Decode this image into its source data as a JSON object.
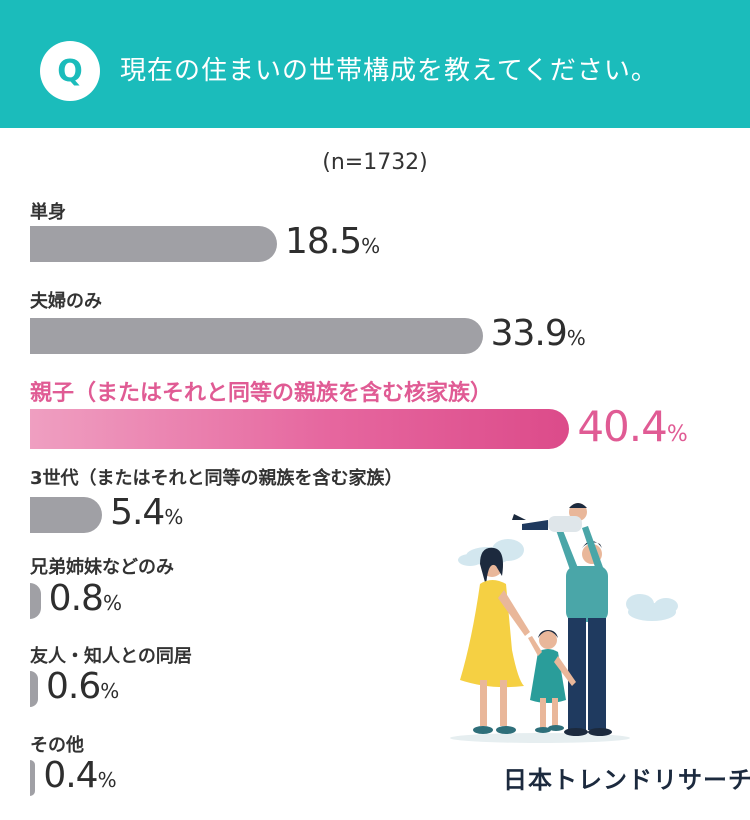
{
  "header": {
    "badge": "Q",
    "question": "現在の住まいの世帯構成を教えてください。"
  },
  "sample_size": "(n=1732)",
  "brand": "日本トレンドリサーチ",
  "colors": {
    "header": "#1bbcbb",
    "bar": "#a0a0a5",
    "highlight": "#e05b94"
  },
  "chart_data": {
    "type": "bar",
    "orientation": "horizontal",
    "categories": [
      "単身",
      "夫婦のみ",
      "親子（またはそれと同等の親族を含む核家族）",
      "3世代（またはそれと同等の親族を含む家族）",
      "兄弟姉妹などのみ",
      "友人・知人との同居",
      "その他"
    ],
    "values": [
      18.5,
      33.9,
      40.4,
      5.4,
      0.8,
      0.6,
      0.4
    ],
    "value_labels": [
      "18.5",
      "33.9",
      "40.4",
      "5.4",
      "0.8",
      "0.6",
      "0.4"
    ],
    "unit": "%",
    "highlight_index": 2
  }
}
